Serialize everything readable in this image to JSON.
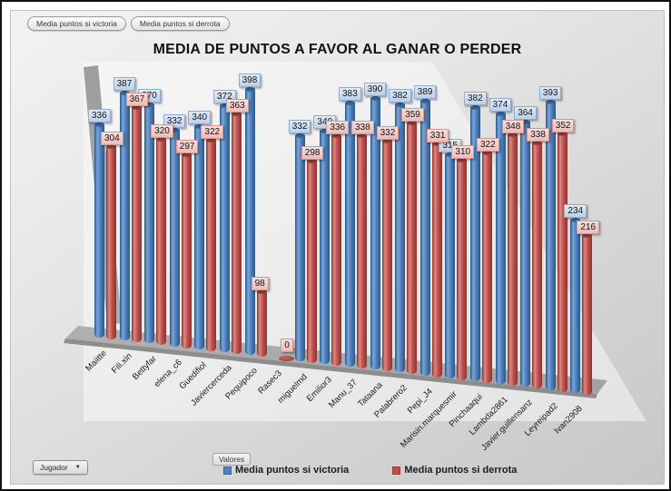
{
  "filters": [
    {
      "label": "Media puntos si victoria"
    },
    {
      "label": "Media puntos si derrota"
    }
  ],
  "title": "MEDIA DE PUNTOS A FAVOR AL GANAR O PERDER",
  "values_field_button": "Valores",
  "axis_field_button": {
    "label": "Jugador",
    "arrow": "▼"
  },
  "legend": [
    {
      "label": "Media puntos si victoria",
      "color": "#4f81bd"
    },
    {
      "label": "Media puntos si derrota",
      "color": "#c0504d"
    }
  ],
  "colors": {
    "victoria_bar": "#4f81bd",
    "derrota_bar": "#c0504d",
    "victoria_label_bg": "#c9d9ef",
    "derrota_label_bg": "#f2c6c3",
    "background": "#dcdcdc",
    "wall": "#a8a8a8"
  },
  "chart_data": {
    "type": "bar",
    "subtype": "3d-cylinder",
    "title": "MEDIA DE PUNTOS A FAVOR AL GANAR O PERDER",
    "xlabel": "Jugador",
    "ylabel": "Valores",
    "grid": false,
    "value_labels": true,
    "legend_position": "bottom",
    "categories": [
      "Maiitte",
      "Fili.xin",
      "Bettyfar",
      "elena_c6",
      "Guedifiol",
      "Javiercerceda",
      "Pequipoco",
      "Rasec3",
      "miguelmd",
      "Emilior3",
      "Manu_37",
      "Tataana",
      "Palabrero2",
      "Pepi_J4",
      "Marisin.marquesmir",
      "Pinchaaqui",
      "Lambda2861",
      "Javier.guillensanz",
      "Leyreipad2",
      "Ivan2908"
    ],
    "series": [
      {
        "name": "Media puntos si victoria",
        "color": "#4f81bd",
        "values": [
          336,
          387,
          370,
          332,
          340,
          372,
          398,
          null,
          332,
          340,
          383,
          390,
          382,
          389,
          315,
          382,
          374,
          364,
          393,
          234
        ]
      },
      {
        "name": "Media puntos si derrota",
        "color": "#c0504d",
        "values": [
          304,
          367,
          320,
          297,
          322,
          363,
          98,
          0,
          298,
          336,
          338,
          332,
          359,
          331,
          310,
          322,
          348,
          338,
          352,
          216
        ]
      }
    ]
  }
}
